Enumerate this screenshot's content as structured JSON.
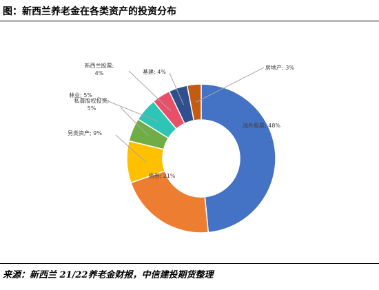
{
  "header": {
    "title": "图：新西兰养老金在各类资产的投资分布"
  },
  "footer": {
    "source": "来源：新西兰 21/22养老金财报，中信建投期货整理"
  },
  "chart_data": {
    "type": "pie",
    "donut": true,
    "title": "",
    "slices": [
      {
        "name": "海外股票",
        "value": 48,
        "label": "海外股票; 48%",
        "color": "#4472C4"
      },
      {
        "name": "债券",
        "value": 21,
        "label": "债券; 21%",
        "color": "#ED7D31"
      },
      {
        "name": "另类资产",
        "value": 9,
        "label": "另类资产; 9%",
        "color": "#FFC000"
      },
      {
        "name": "私募股权投资",
        "value": 5,
        "label": "私募股权投资; 5%",
        "color": "#70AD47"
      },
      {
        "name": "林业",
        "value": 5,
        "label": "林业; 5%",
        "color": "#2EC4B6"
      },
      {
        "name": "新西兰股票",
        "value": 4,
        "label": "新西兰股票; 4%",
        "color": "#E8506A"
      },
      {
        "name": "基建",
        "value": 4,
        "label": "基建; 4%",
        "color": "#2F4F8F"
      },
      {
        "name": "房地产",
        "value": 3,
        "label": "房地产; 3%",
        "color": "#C55A11"
      }
    ]
  }
}
